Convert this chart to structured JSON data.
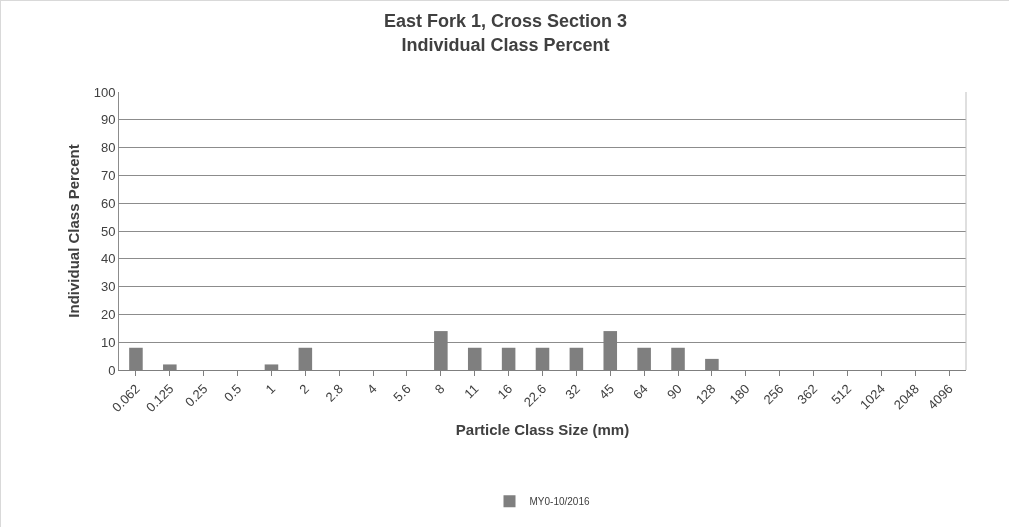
{
  "chart_data": {
    "type": "bar",
    "title": "East Fork 1, Cross Section 3",
    "subtitle": "Individual Class Percent",
    "xlabel": "Particle Class Size (mm)",
    "ylabel": "Individual Class Percent",
    "categories": [
      "0.062",
      "0.125",
      "0.25",
      "0.5",
      "1",
      "2",
      "2.8",
      "4",
      "5.6",
      "8",
      "11",
      "16",
      "22.6",
      "32",
      "45",
      "64",
      "90",
      "128",
      "180",
      "256",
      "362",
      "512",
      "1024",
      "2048",
      "4096"
    ],
    "series": [
      {
        "name": "MY0-10/2016",
        "color": "#7f7f7f",
        "values": [
          8,
          2,
          0,
          0,
          2,
          8,
          0,
          0,
          0,
          14,
          8,
          8,
          8,
          8,
          14,
          8,
          8,
          4,
          0,
          0,
          0,
          0,
          0,
          0,
          0
        ]
      }
    ],
    "ylim": [
      0,
      100
    ],
    "yticks": [
      0,
      10,
      20,
      30,
      40,
      50,
      60,
      70,
      80,
      90,
      100
    ],
    "grid": "y",
    "legend": "bottom"
  }
}
